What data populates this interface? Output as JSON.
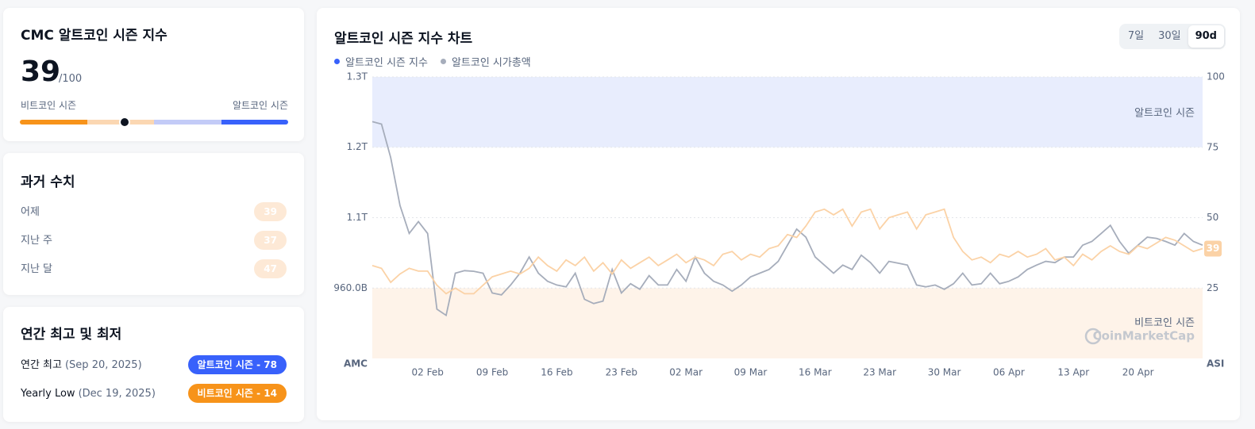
{
  "index_card": {
    "title": "CMC 알트코인 시즌 지수",
    "value": 39,
    "denominator": {
      "value": 100,
      "label": "/100"
    },
    "left_label": "비트코인 시즌",
    "right_label": "알트코인 시즌"
  },
  "history": {
    "title": "과거 수치",
    "rows": [
      {
        "label": "어제",
        "value": 39
      },
      {
        "label": "지난 주",
        "value": 37
      },
      {
        "label": "지난 달",
        "value": 47
      }
    ]
  },
  "yearly": {
    "title": "연간 최고 및 최저",
    "rows": [
      {
        "label": "연간 최고",
        "date": "(Sep 20, 2025)",
        "badge": "알트코인 시즌 - 78",
        "color": "#3861fb"
      },
      {
        "label": "Yearly Low",
        "date": "(Dec 19, 2025)",
        "badge": "비트코인 시즌 - 14",
        "color": "#f7931a"
      }
    ]
  },
  "chart_data": {
    "type": "line",
    "title": "알트코인 시즌 지수 차트",
    "buttons": [
      "7일",
      "30일",
      "90d"
    ],
    "active_button": 2,
    "y_label": "AMC",
    "y2_label": "ASI",
    "watermark": "CoinMarketCap",
    "categories": [
      null,
      null,
      null,
      null,
      null,
      null,
      "02 Feb",
      null,
      null,
      null,
      null,
      null,
      null,
      "09 Feb",
      null,
      null,
      null,
      null,
      null,
      null,
      "16 Feb",
      null,
      null,
      null,
      null,
      null,
      null,
      "23 Feb",
      null,
      null,
      null,
      null,
      null,
      null,
      "02 Mar",
      null,
      null,
      null,
      null,
      null,
      null,
      "09 Mar",
      null,
      null,
      null,
      null,
      null,
      null,
      "16 Mar",
      null,
      null,
      null,
      null,
      null,
      null,
      "23 Mar",
      null,
      null,
      null,
      null,
      null,
      null,
      "30 Mar",
      null,
      null,
      null,
      null,
      null,
      null,
      "06 Apr",
      null,
      null,
      null,
      null,
      null,
      null,
      "13 Apr",
      null,
      null,
      null,
      null,
      null,
      null,
      "20 Apr",
      null,
      null,
      null,
      null,
      null,
      null,
      null
    ],
    "ylim": [
      846700000000,
      1300000000000
    ],
    "yticks": [
      {
        "value": 960000000000,
        "label": "960.0B"
      },
      {
        "value": 1073300000000,
        "label": "1.1T"
      },
      {
        "value": 1186700000000,
        "label": "1.2T"
      },
      {
        "value": 1300000000000,
        "label": "1.3T"
      }
    ],
    "y2lim": [
      0,
      100
    ],
    "y2ticks": [
      25,
      50,
      75,
      100
    ],
    "bands": [
      {
        "label": "알트코인 시즌",
        "from": 75,
        "to": 100,
        "color": "#e8edfd"
      },
      {
        "label": "비트코인 시즌",
        "from": 0,
        "to": 25,
        "color": "#fef3e9"
      }
    ],
    "series": [
      {
        "name": "알트코인 시즌 지수",
        "color": "#3861fb",
        "line_color": "#fbd2a6",
        "badge_color": "#fbd2a6",
        "axis": "y2",
        "values": [
          33,
          32,
          27,
          30,
          32,
          31,
          31,
          26,
          23,
          25,
          23,
          23,
          26,
          29,
          30,
          31,
          30,
          32,
          36,
          33,
          31,
          35,
          33,
          36,
          31,
          34,
          30,
          35,
          32,
          34,
          36,
          33,
          35,
          37,
          34,
          36,
          35,
          33,
          37,
          38,
          35,
          37,
          36,
          39,
          40,
          44,
          43,
          47,
          52,
          53,
          51,
          53,
          47,
          52,
          53,
          46,
          50,
          51,
          52,
          46,
          51,
          52,
          53,
          43,
          38,
          35,
          36,
          34,
          37,
          36,
          38,
          36,
          37,
          39,
          35,
          36,
          33,
          37,
          35,
          38,
          40,
          38,
          37,
          40,
          39,
          41,
          43,
          42,
          40,
          38,
          39
        ]
      },
      {
        "name": "알트코인 시가총액",
        "color": "#a6adbb",
        "line_color": "#a6adbb",
        "values": [
          1228000000000,
          1224000000000,
          1170000000000,
          1093000000000,
          1048000000000,
          1067000000000,
          1048000000000,
          926000000000,
          916000000000,
          984000000000,
          988000000000,
          987000000000,
          984000000000,
          952000000000,
          949000000000,
          965000000000,
          984000000000,
          1010000000000,
          984000000000,
          971000000000,
          965000000000,
          962000000000,
          984000000000,
          942000000000,
          935000000000,
          939000000000,
          990000000000,
          952000000000,
          967000000000,
          958000000000,
          980000000000,
          965000000000,
          965000000000,
          990000000000,
          971000000000,
          1010000000000,
          984000000000,
          971000000000,
          965000000000,
          955000000000,
          965000000000,
          978000000000,
          984000000000,
          990000000000,
          1003000000000,
          1029000000000,
          1055000000000,
          1042000000000,
          1010000000000,
          997000000000,
          984000000000,
          997000000000,
          990000000000,
          1013000000000,
          1001000000000,
          984000000000,
          1003000000000,
          1000000000000,
          997000000000,
          965000000000,
          962000000000,
          965000000000,
          958000000000,
          967000000000,
          984000000000,
          965000000000,
          967000000000,
          984000000000,
          967000000000,
          971000000000,
          978000000000,
          990000000000,
          997000000000,
          1003000000000,
          1001000000000,
          1010000000000,
          1010000000000,
          1029000000000,
          1035000000000,
          1048000000000,
          1061000000000,
          1035000000000,
          1016000000000,
          1029000000000,
          1042000000000,
          1040000000000,
          1035000000000,
          1029000000000,
          1048000000000,
          1035000000000,
          1029000000000
        ]
      }
    ]
  }
}
